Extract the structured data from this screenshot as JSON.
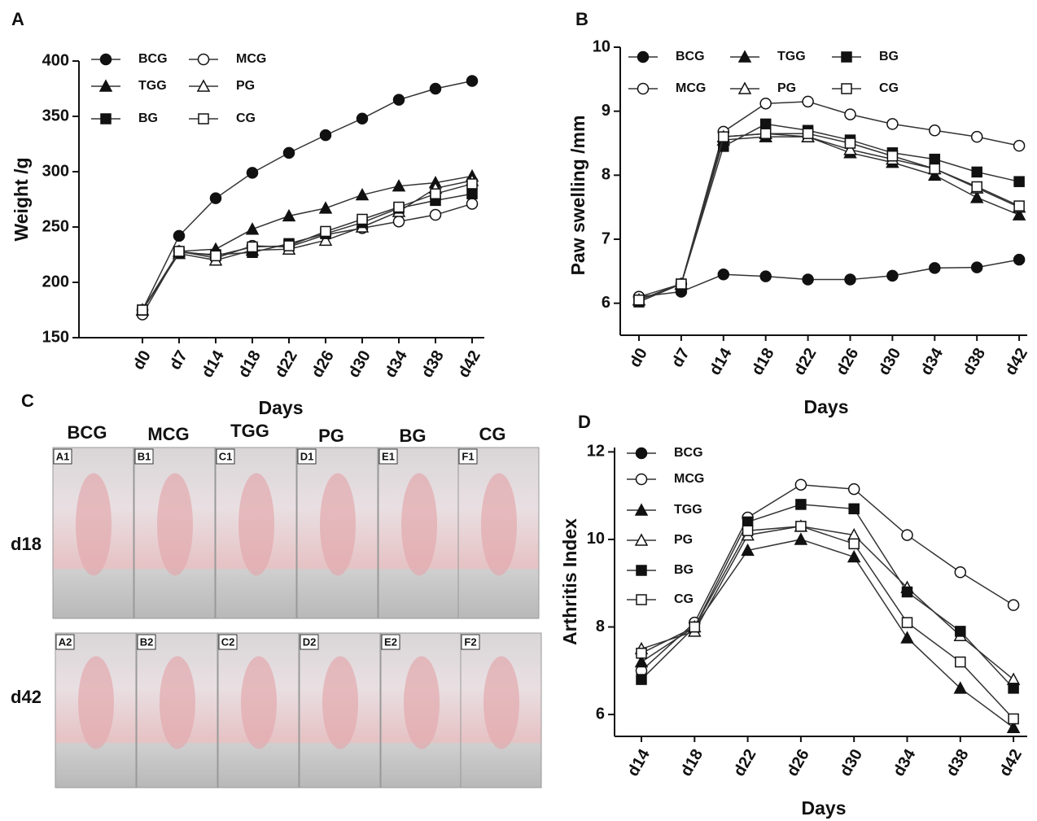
{
  "chart_data": [
    {
      "type": "line",
      "panel": "A",
      "y_label": "Weight /g",
      "x_label": "Days",
      "categories": [
        "d0",
        "d7",
        "d14",
        "d18",
        "d22",
        "d26",
        "d30",
        "d34",
        "d38",
        "d42"
      ],
      "ylim": [
        150,
        400
      ],
      "yticks": [
        150,
        200,
        250,
        300,
        350,
        400
      ],
      "series": [
        {
          "name": "BCG",
          "color": "#333333",
          "marker": "circle",
          "marker_fill": "#111111",
          "values": [
            175,
            242,
            276,
            299,
            317,
            333,
            348,
            365,
            375,
            382
          ]
        },
        {
          "name": "MCG",
          "color": "#333333",
          "marker": "circle",
          "marker_fill": "#ffffff",
          "values": [
            171,
            228,
            222,
            233,
            232,
            243,
            249,
            255,
            261,
            271
          ]
        },
        {
          "name": "TGG",
          "color": "#333333",
          "marker": "triangle",
          "marker_fill": "#111111",
          "values": [
            175,
            228,
            230,
            248,
            260,
            267,
            279,
            287,
            290,
            296
          ]
        },
        {
          "name": "PG",
          "color": "#333333",
          "marker": "triangle",
          "marker_fill": "#ffffff",
          "values": [
            175,
            226,
            220,
            229,
            230,
            238,
            250,
            264,
            285,
            292
          ]
        },
        {
          "name": "BG",
          "color": "#333333",
          "marker": "square",
          "marker_fill": "#111111",
          "values": [
            175,
            227,
            225,
            227,
            235,
            244,
            254,
            267,
            274,
            280
          ]
        },
        {
          "name": "CG",
          "color": "#333333",
          "marker": "square",
          "marker_fill": "#ffffff",
          "values": [
            175,
            228,
            224,
            232,
            233,
            246,
            257,
            268,
            280,
            289
          ]
        }
      ]
    },
    {
      "type": "line",
      "panel": "B",
      "y_label": "Paw swelling /mm",
      "x_label": "Days",
      "categories": [
        "d0",
        "d7",
        "d14",
        "d18",
        "d22",
        "d26",
        "d30",
        "d34",
        "d38",
        "d42"
      ],
      "ylim": [
        5.5,
        10
      ],
      "yticks": [
        6,
        7,
        8,
        9,
        10
      ],
      "series": [
        {
          "name": "BCG",
          "color": "#333333",
          "marker": "circle",
          "marker_fill": "#111111",
          "values": [
            6.1,
            6.18,
            6.45,
            6.42,
            6.37,
            6.37,
            6.43,
            6.55,
            6.56,
            6.68
          ]
        },
        {
          "name": "MCG",
          "color": "#333333",
          "marker": "circle",
          "marker_fill": "#ffffff",
          "values": [
            6.1,
            6.3,
            8.68,
            9.12,
            9.15,
            8.95,
            8.8,
            8.7,
            8.6,
            8.46
          ]
        },
        {
          "name": "TGG",
          "color": "#333333",
          "marker": "triangle",
          "marker_fill": "#111111",
          "values": [
            6.05,
            6.3,
            8.55,
            8.6,
            8.6,
            8.35,
            8.2,
            8.0,
            7.65,
            7.38
          ]
        },
        {
          "name": "PG",
          "color": "#333333",
          "marker": "triangle",
          "marker_fill": "#ffffff",
          "values": [
            6.05,
            6.3,
            8.6,
            8.65,
            8.6,
            8.4,
            8.25,
            8.1,
            7.8,
            7.5
          ]
        },
        {
          "name": "BG",
          "color": "#333333",
          "marker": "square",
          "marker_fill": "#111111",
          "values": [
            6.02,
            6.3,
            8.45,
            8.8,
            8.7,
            8.55,
            8.35,
            8.25,
            8.05,
            7.9
          ]
        },
        {
          "name": "CG",
          "color": "#333333",
          "marker": "square",
          "marker_fill": "#ffffff",
          "values": [
            6.05,
            6.3,
            8.6,
            8.65,
            8.65,
            8.5,
            8.3,
            8.1,
            7.82,
            7.52
          ]
        }
      ]
    },
    {
      "type": "line",
      "panel": "D",
      "y_label": "Arthritis Index",
      "x_label": "Days",
      "categories": [
        "d14",
        "d18",
        "d22",
        "d26",
        "d30",
        "d34",
        "d38",
        "d42"
      ],
      "ylim": [
        5.5,
        12.1
      ],
      "yticks": [
        6,
        8,
        10,
        12
      ],
      "series": [
        {
          "name": "BCG",
          "color": "#333333",
          "marker": "circle",
          "marker_fill": "#111111",
          "values": [
            null,
            null,
            null,
            null,
            null,
            null,
            null,
            null
          ]
        },
        {
          "name": "MCG",
          "color": "#333333",
          "marker": "circle",
          "marker_fill": "#ffffff",
          "values": [
            7.0,
            8.1,
            10.5,
            11.25,
            11.15,
            10.1,
            9.25,
            8.5
          ]
        },
        {
          "name": "TGG",
          "color": "#333333",
          "marker": "triangle",
          "marker_fill": "#111111",
          "values": [
            7.2,
            8.0,
            9.75,
            10.0,
            9.6,
            7.75,
            6.6,
            5.7
          ]
        },
        {
          "name": "PG",
          "color": "#333333",
          "marker": "triangle",
          "marker_fill": "#ffffff",
          "values": [
            7.5,
            7.9,
            10.1,
            10.3,
            10.1,
            8.9,
            7.8,
            6.8
          ]
        },
        {
          "name": "BG",
          "color": "#333333",
          "marker": "square",
          "marker_fill": "#111111",
          "values": [
            6.8,
            8.0,
            10.4,
            10.8,
            10.7,
            8.8,
            7.9,
            6.6
          ]
        },
        {
          "name": "CG",
          "color": "#333333",
          "marker": "square",
          "marker_fill": "#ffffff",
          "values": [
            7.4,
            8.0,
            10.2,
            10.3,
            9.9,
            8.1,
            7.2,
            5.9
          ]
        }
      ]
    }
  ],
  "photo_panel": {
    "panel": "C",
    "columns": [
      "BCG",
      "MCG",
      "TGG",
      "PG",
      "BG",
      "CG"
    ],
    "rows": [
      "d18",
      "d42"
    ],
    "labels": [
      [
        "A1",
        "B1",
        "C1",
        "D1",
        "E1",
        "F1"
      ],
      [
        "A2",
        "B2",
        "C2",
        "D2",
        "E2",
        "F2"
      ]
    ]
  }
}
